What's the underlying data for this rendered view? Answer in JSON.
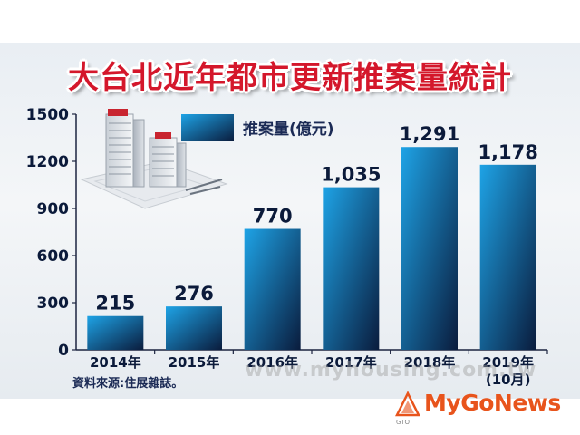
{
  "chart_data": {
    "type": "bar",
    "title": "大台北近年都市更新推案量統計",
    "categories": [
      "2014年",
      "2015年",
      "2016年",
      "2017年",
      "2018年",
      "2019年"
    ],
    "category_sublabels": [
      "",
      "",
      "",
      "",
      "",
      "(10月)"
    ],
    "series": [
      {
        "name": "推案量(億元)",
        "values": [
          215,
          276,
          770,
          1035,
          1291,
          1178
        ],
        "value_labels": [
          "215",
          "276",
          "770",
          "1,035",
          "1,291",
          "1,178"
        ]
      }
    ],
    "y_ticks": [
      "0",
      "300",
      "600",
      "900",
      "1200",
      "1500"
    ],
    "ylim": [
      0,
      1500
    ],
    "xlabel": "",
    "ylabel": "",
    "grid": false,
    "legend_position": "top-left",
    "bar_color_light": "#1ea3e6",
    "bar_color_dark": "#0a1c3d"
  },
  "source_text": "資料來源:住展雜誌。",
  "watermark_text": "www.myhousing.com.tw",
  "brand": {
    "part1": "My",
    "part2": "Go",
    "part3": "News",
    "logo_sub": "GIO"
  },
  "colors": {
    "title": "#d4172b",
    "brand": "#e8541c",
    "axis_text": "#0b1a3a"
  }
}
